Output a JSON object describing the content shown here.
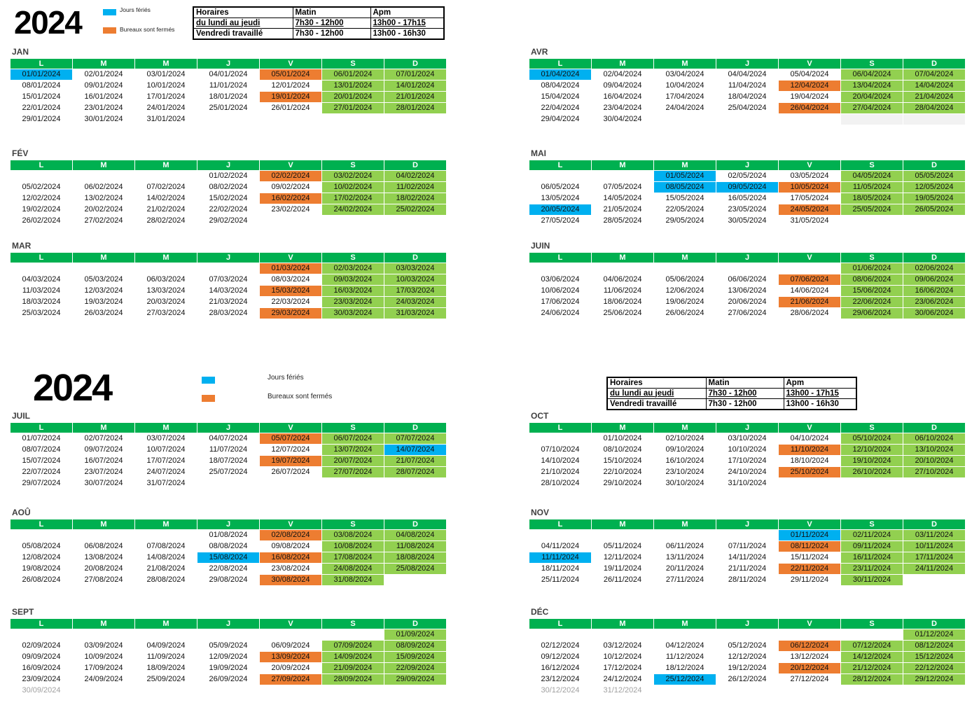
{
  "weekdays": [
    "L",
    "M",
    "M",
    "J",
    "V",
    "S",
    "D"
  ],
  "colors": {
    "header": "#00b050",
    "weekend": "#92d050",
    "shaded": "#f2f2f2",
    "faded_text": "#a0a0a0"
  },
  "sections": [
    {
      "year": "2024",
      "legend": [
        {
          "label": "Jours fériés",
          "color": "#00b0f0",
          "dates": [
            "01/01/2024",
            "01/04/2024",
            "01/05/2024",
            "08/05/2024",
            "09/05/2024",
            "20/05/2024"
          ]
        },
        {
          "label": "Bureaux sont fermés",
          "color": "#ed7d31",
          "dates": [
            "05/01/2024",
            "19/01/2024",
            "02/02/2024",
            "16/02/2024",
            "01/03/2024",
            "15/03/2024",
            "29/03/2024",
            "12/04/2024",
            "26/04/2024",
            "10/05/2024",
            "24/05/2024",
            "07/06/2024",
            "21/06/2024"
          ]
        }
      ],
      "hours": [
        [
          "Horaires",
          "Matin",
          "Apm"
        ],
        [
          "du lundi au jeudi",
          "7h30 - 12h00",
          "13h00 - 17h15"
        ],
        [
          "Vendredi travaillé",
          "7h30 - 12h00",
          "13h00 - 16h30"
        ]
      ],
      "faded_dates": [],
      "months": [
        {
          "label": "JAN",
          "weeks": [
            [
              "01/01/2024",
              "02/01/2024",
              "03/01/2024",
              "04/01/2024",
              "05/01/2024",
              "06/01/2024",
              "07/01/2024"
            ],
            [
              "08/01/2024",
              "09/01/2024",
              "10/01/2024",
              "11/01/2024",
              "12/01/2024",
              "13/01/2024",
              "14/01/2024"
            ],
            [
              "15/01/2024",
              "16/01/2024",
              "17/01/2024",
              "18/01/2024",
              "19/01/2024",
              "20/01/2024",
              "21/01/2024"
            ],
            [
              "22/01/2024",
              "23/01/2024",
              "24/01/2024",
              "25/01/2024",
              "26/01/2024",
              "27/01/2024",
              "28/01/2024"
            ],
            [
              "29/01/2024",
              "30/01/2024",
              "31/01/2024",
              "",
              "",
              "",
              ""
            ]
          ]
        },
        {
          "label": "FÉV",
          "weeks": [
            [
              "",
              "",
              "",
              "01/02/2024",
              "02/02/2024",
              "03/02/2024",
              "04/02/2024"
            ],
            [
              "05/02/2024",
              "06/02/2024",
              "07/02/2024",
              "08/02/2024",
              "09/02/2024",
              "10/02/2024",
              "11/02/2024"
            ],
            [
              "12/02/2024",
              "13/02/2024",
              "14/02/2024",
              "15/02/2024",
              "16/02/2024",
              "17/02/2024",
              "18/02/2024"
            ],
            [
              "19/02/2024",
              "20/02/2024",
              "21/02/2024",
              "22/02/2024",
              "23/02/2024",
              "24/02/2024",
              "25/02/2024"
            ],
            [
              "26/02/2024",
              "27/02/2024",
              "28/02/2024",
              "29/02/2024",
              "",
              "",
              ""
            ]
          ]
        },
        {
          "label": "MAR",
          "weeks": [
            [
              "",
              "",
              "",
              "",
              "01/03/2024",
              "02/03/2024",
              "03/03/2024"
            ],
            [
              "04/03/2024",
              "05/03/2024",
              "06/03/2024",
              "07/03/2024",
              "08/03/2024",
              "09/03/2024",
              "10/03/2024"
            ],
            [
              "11/03/2024",
              "12/03/2024",
              "13/03/2024",
              "14/03/2024",
              "15/03/2024",
              "16/03/2024",
              "17/03/2024"
            ],
            [
              "18/03/2024",
              "19/03/2024",
              "20/03/2024",
              "21/03/2024",
              "22/03/2024",
              "23/03/2024",
              "24/03/2024"
            ],
            [
              "25/03/2024",
              "26/03/2024",
              "27/03/2024",
              "28/03/2024",
              "29/03/2024",
              "30/03/2024",
              "31/03/2024"
            ]
          ]
        },
        {
          "label": "AVR",
          "shaded_empty_cells": [
            {
              "week": 5,
              "day": "S"
            },
            {
              "week": 5,
              "day": "D"
            }
          ],
          "weeks": [
            [
              "01/04/2024",
              "02/04/2024",
              "03/04/2024",
              "04/04/2024",
              "05/04/2024",
              "06/04/2024",
              "07/04/2024"
            ],
            [
              "08/04/2024",
              "09/04/2024",
              "10/04/2024",
              "11/04/2024",
              "12/04/2024",
              "13/04/2024",
              "14/04/2024"
            ],
            [
              "15/04/2024",
              "16/04/2024",
              "17/04/2024",
              "18/04/2024",
              "19/04/2024",
              "20/04/2024",
              "21/04/2024"
            ],
            [
              "22/04/2024",
              "23/04/2024",
              "24/04/2024",
              "25/04/2024",
              "26/04/2024",
              "27/04/2024",
              "28/04/2024"
            ],
            [
              "29/04/2024",
              "30/04/2024",
              "",
              "",
              "",
              "",
              ""
            ]
          ]
        },
        {
          "label": "MAI",
          "weeks": [
            [
              "",
              "",
              "01/05/2024",
              "02/05/2024",
              "03/05/2024",
              "04/05/2024",
              "05/05/2024"
            ],
            [
              "06/05/2024",
              "07/05/2024",
              "08/05/2024",
              "09/05/2024",
              "10/05/2024",
              "11/05/2024",
              "12/05/2024"
            ],
            [
              "13/05/2024",
              "14/05/2024",
              "15/05/2024",
              "16/05/2024",
              "17/05/2024",
              "18/05/2024",
              "19/05/2024"
            ],
            [
              "20/05/2024",
              "21/05/2024",
              "22/05/2024",
              "23/05/2024",
              "24/05/2024",
              "25/05/2024",
              "26/05/2024"
            ],
            [
              "27/05/2024",
              "28/05/2024",
              "29/05/2024",
              "30/05/2024",
              "31/05/2024",
              "",
              ""
            ]
          ]
        },
        {
          "label": "JUIN",
          "weeks": [
            [
              "",
              "",
              "",
              "",
              "",
              "01/06/2024",
              "02/06/2024"
            ],
            [
              "03/06/2024",
              "04/06/2024",
              "05/06/2024",
              "06/06/2024",
              "07/06/2024",
              "08/06/2024",
              "09/06/2024"
            ],
            [
              "10/06/2024",
              "11/06/2024",
              "12/06/2024",
              "13/06/2024",
              "14/06/2024",
              "15/06/2024",
              "16/06/2024"
            ],
            [
              "17/06/2024",
              "18/06/2024",
              "19/06/2024",
              "20/06/2024",
              "21/06/2024",
              "22/06/2024",
              "23/06/2024"
            ],
            [
              "24/06/2024",
              "25/06/2024",
              "26/06/2024",
              "27/06/2024",
              "28/06/2024",
              "29/06/2024",
              "30/06/2024"
            ]
          ]
        }
      ]
    },
    {
      "year": "2024",
      "legend": [
        {
          "label": "Jours fériés",
          "color": "#00b0f0",
          "dates": [
            "14/07/2024",
            "15/08/2024",
            "01/11/2024",
            "11/11/2024",
            "25/12/2024"
          ]
        },
        {
          "label": "Bureaux sont fermés",
          "color": "#ed7d31",
          "dates": [
            "05/07/2024",
            "19/07/2024",
            "02/08/2024",
            "16/08/2024",
            "30/08/2024",
            "13/09/2024",
            "27/09/2024",
            "11/10/2024",
            "25/10/2024",
            "08/11/2024",
            "22/11/2024",
            "06/12/2024",
            "20/12/2024"
          ]
        }
      ],
      "hours": [
        [
          "Horaires",
          "Matin",
          "Apm"
        ],
        [
          "du lundi au jeudi",
          "7h30 - 12h00",
          "13h00 - 17h15"
        ],
        [
          "Vendredi travaillé",
          "7h30 - 12h00",
          "13h00 - 16h30"
        ]
      ],
      "faded_dates": [
        "30/09/2024",
        "30/12/2024",
        "31/12/2024"
      ],
      "months": [
        {
          "label": "JUIL",
          "weeks": [
            [
              "01/07/2024",
              "02/07/2024",
              "03/07/2024",
              "04/07/2024",
              "05/07/2024",
              "06/07/2024",
              "07/07/2024"
            ],
            [
              "08/07/2024",
              "09/07/2024",
              "10/07/2024",
              "11/07/2024",
              "12/07/2024",
              "13/07/2024",
              "14/07/2024"
            ],
            [
              "15/07/2024",
              "16/07/2024",
              "17/07/2024",
              "18/07/2024",
              "19/07/2024",
              "20/07/2024",
              "21/07/2024"
            ],
            [
              "22/07/2024",
              "23/07/2024",
              "24/07/2024",
              "25/07/2024",
              "26/07/2024",
              "27/07/2024",
              "28/07/2024"
            ],
            [
              "29/07/2024",
              "30/07/2024",
              "31/07/2024",
              "",
              "",
              "",
              ""
            ]
          ]
        },
        {
          "label": "AOÛ",
          "weeks": [
            [
              "",
              "",
              "",
              "01/08/2024",
              "02/08/2024",
              "03/08/2024",
              "04/08/2024"
            ],
            [
              "05/08/2024",
              "06/08/2024",
              "07/08/2024",
              "08/08/2024",
              "09/08/2024",
              "10/08/2024",
              "11/08/2024"
            ],
            [
              "12/08/2024",
              "13/08/2024",
              "14/08/2024",
              "15/08/2024",
              "16/08/2024",
              "17/08/2024",
              "18/08/2024"
            ],
            [
              "19/08/2024",
              "20/08/2024",
              "21/08/2024",
              "22/08/2024",
              "23/08/2024",
              "24/08/2024",
              "25/08/2024"
            ],
            [
              "26/08/2024",
              "27/08/2024",
              "28/08/2024",
              "29/08/2024",
              "30/08/2024",
              "31/08/2024",
              ""
            ]
          ]
        },
        {
          "label": "SEPT",
          "weeks": [
            [
              "",
              "",
              "",
              "",
              "",
              "",
              "01/09/2024"
            ],
            [
              "02/09/2024",
              "03/09/2024",
              "04/09/2024",
              "05/09/2024",
              "06/09/2024",
              "07/09/2024",
              "08/09/2024"
            ],
            [
              "09/09/2024",
              "10/09/2024",
              "11/09/2024",
              "12/09/2024",
              "13/09/2024",
              "14/09/2024",
              "15/09/2024"
            ],
            [
              "16/09/2024",
              "17/09/2024",
              "18/09/2024",
              "19/09/2024",
              "20/09/2024",
              "21/09/2024",
              "22/09/2024"
            ],
            [
              "23/09/2024",
              "24/09/2024",
              "25/09/2024",
              "26/09/2024",
              "27/09/2024",
              "28/09/2024",
              "29/09/2024"
            ],
            [
              "30/09/2024",
              "",
              "",
              "",
              "",
              "",
              ""
            ]
          ]
        },
        {
          "label": "OCT",
          "weeks": [
            [
              "",
              "01/10/2024",
              "02/10/2024",
              "03/10/2024",
              "04/10/2024",
              "05/10/2024",
              "06/10/2024"
            ],
            [
              "07/10/2024",
              "08/10/2024",
              "09/10/2024",
              "10/10/2024",
              "11/10/2024",
              "12/10/2024",
              "13/10/2024"
            ],
            [
              "14/10/2024",
              "15/10/2024",
              "16/10/2024",
              "17/10/2024",
              "18/10/2024",
              "19/10/2024",
              "20/10/2024"
            ],
            [
              "21/10/2024",
              "22/10/2024",
              "23/10/2024",
              "24/10/2024",
              "25/10/2024",
              "26/10/2024",
              "27/10/2024"
            ],
            [
              "28/10/2024",
              "29/10/2024",
              "30/10/2024",
              "31/10/2024",
              "",
              "",
              ""
            ]
          ]
        },
        {
          "label": "NOV",
          "weeks": [
            [
              "",
              "",
              "",
              "",
              "01/11/2024",
              "02/11/2024",
              "03/11/2024"
            ],
            [
              "04/11/2024",
              "05/11/2024",
              "06/11/2024",
              "07/11/2024",
              "08/11/2024",
              "09/11/2024",
              "10/11/2024"
            ],
            [
              "11/11/2024",
              "12/11/2024",
              "13/11/2024",
              "14/11/2024",
              "15/11/2024",
              "16/11/2024",
              "17/11/2024"
            ],
            [
              "18/11/2024",
              "19/11/2024",
              "20/11/2024",
              "21/11/2024",
              "22/11/2024",
              "23/11/2024",
              "24/11/2024"
            ],
            [
              "25/11/2024",
              "26/11/2024",
              "27/11/2024",
              "28/11/2024",
              "29/11/2024",
              "30/11/2024",
              ""
            ]
          ]
        },
        {
          "label": "DÉC",
          "weeks": [
            [
              "",
              "",
              "",
              "",
              "",
              "",
              "01/12/2024"
            ],
            [
              "02/12/2024",
              "03/12/2024",
              "04/12/2024",
              "05/12/2024",
              "06/12/2024",
              "07/12/2024",
              "08/12/2024"
            ],
            [
              "09/12/2024",
              "10/12/2024",
              "11/12/2024",
              "12/12/2024",
              "13/12/2024",
              "14/12/2024",
              "15/12/2024"
            ],
            [
              "16/12/2024",
              "17/12/2024",
              "18/12/2024",
              "19/12/2024",
              "20/12/2024",
              "21/12/2024",
              "22/12/2024"
            ],
            [
              "23/12/2024",
              "24/12/2024",
              "25/12/2024",
              "26/12/2024",
              "27/12/2024",
              "28/12/2024",
              "29/12/2024"
            ],
            [
              "30/12/2024",
              "31/12/2024",
              "",
              "",
              "",
              "",
              ""
            ]
          ]
        }
      ]
    }
  ]
}
